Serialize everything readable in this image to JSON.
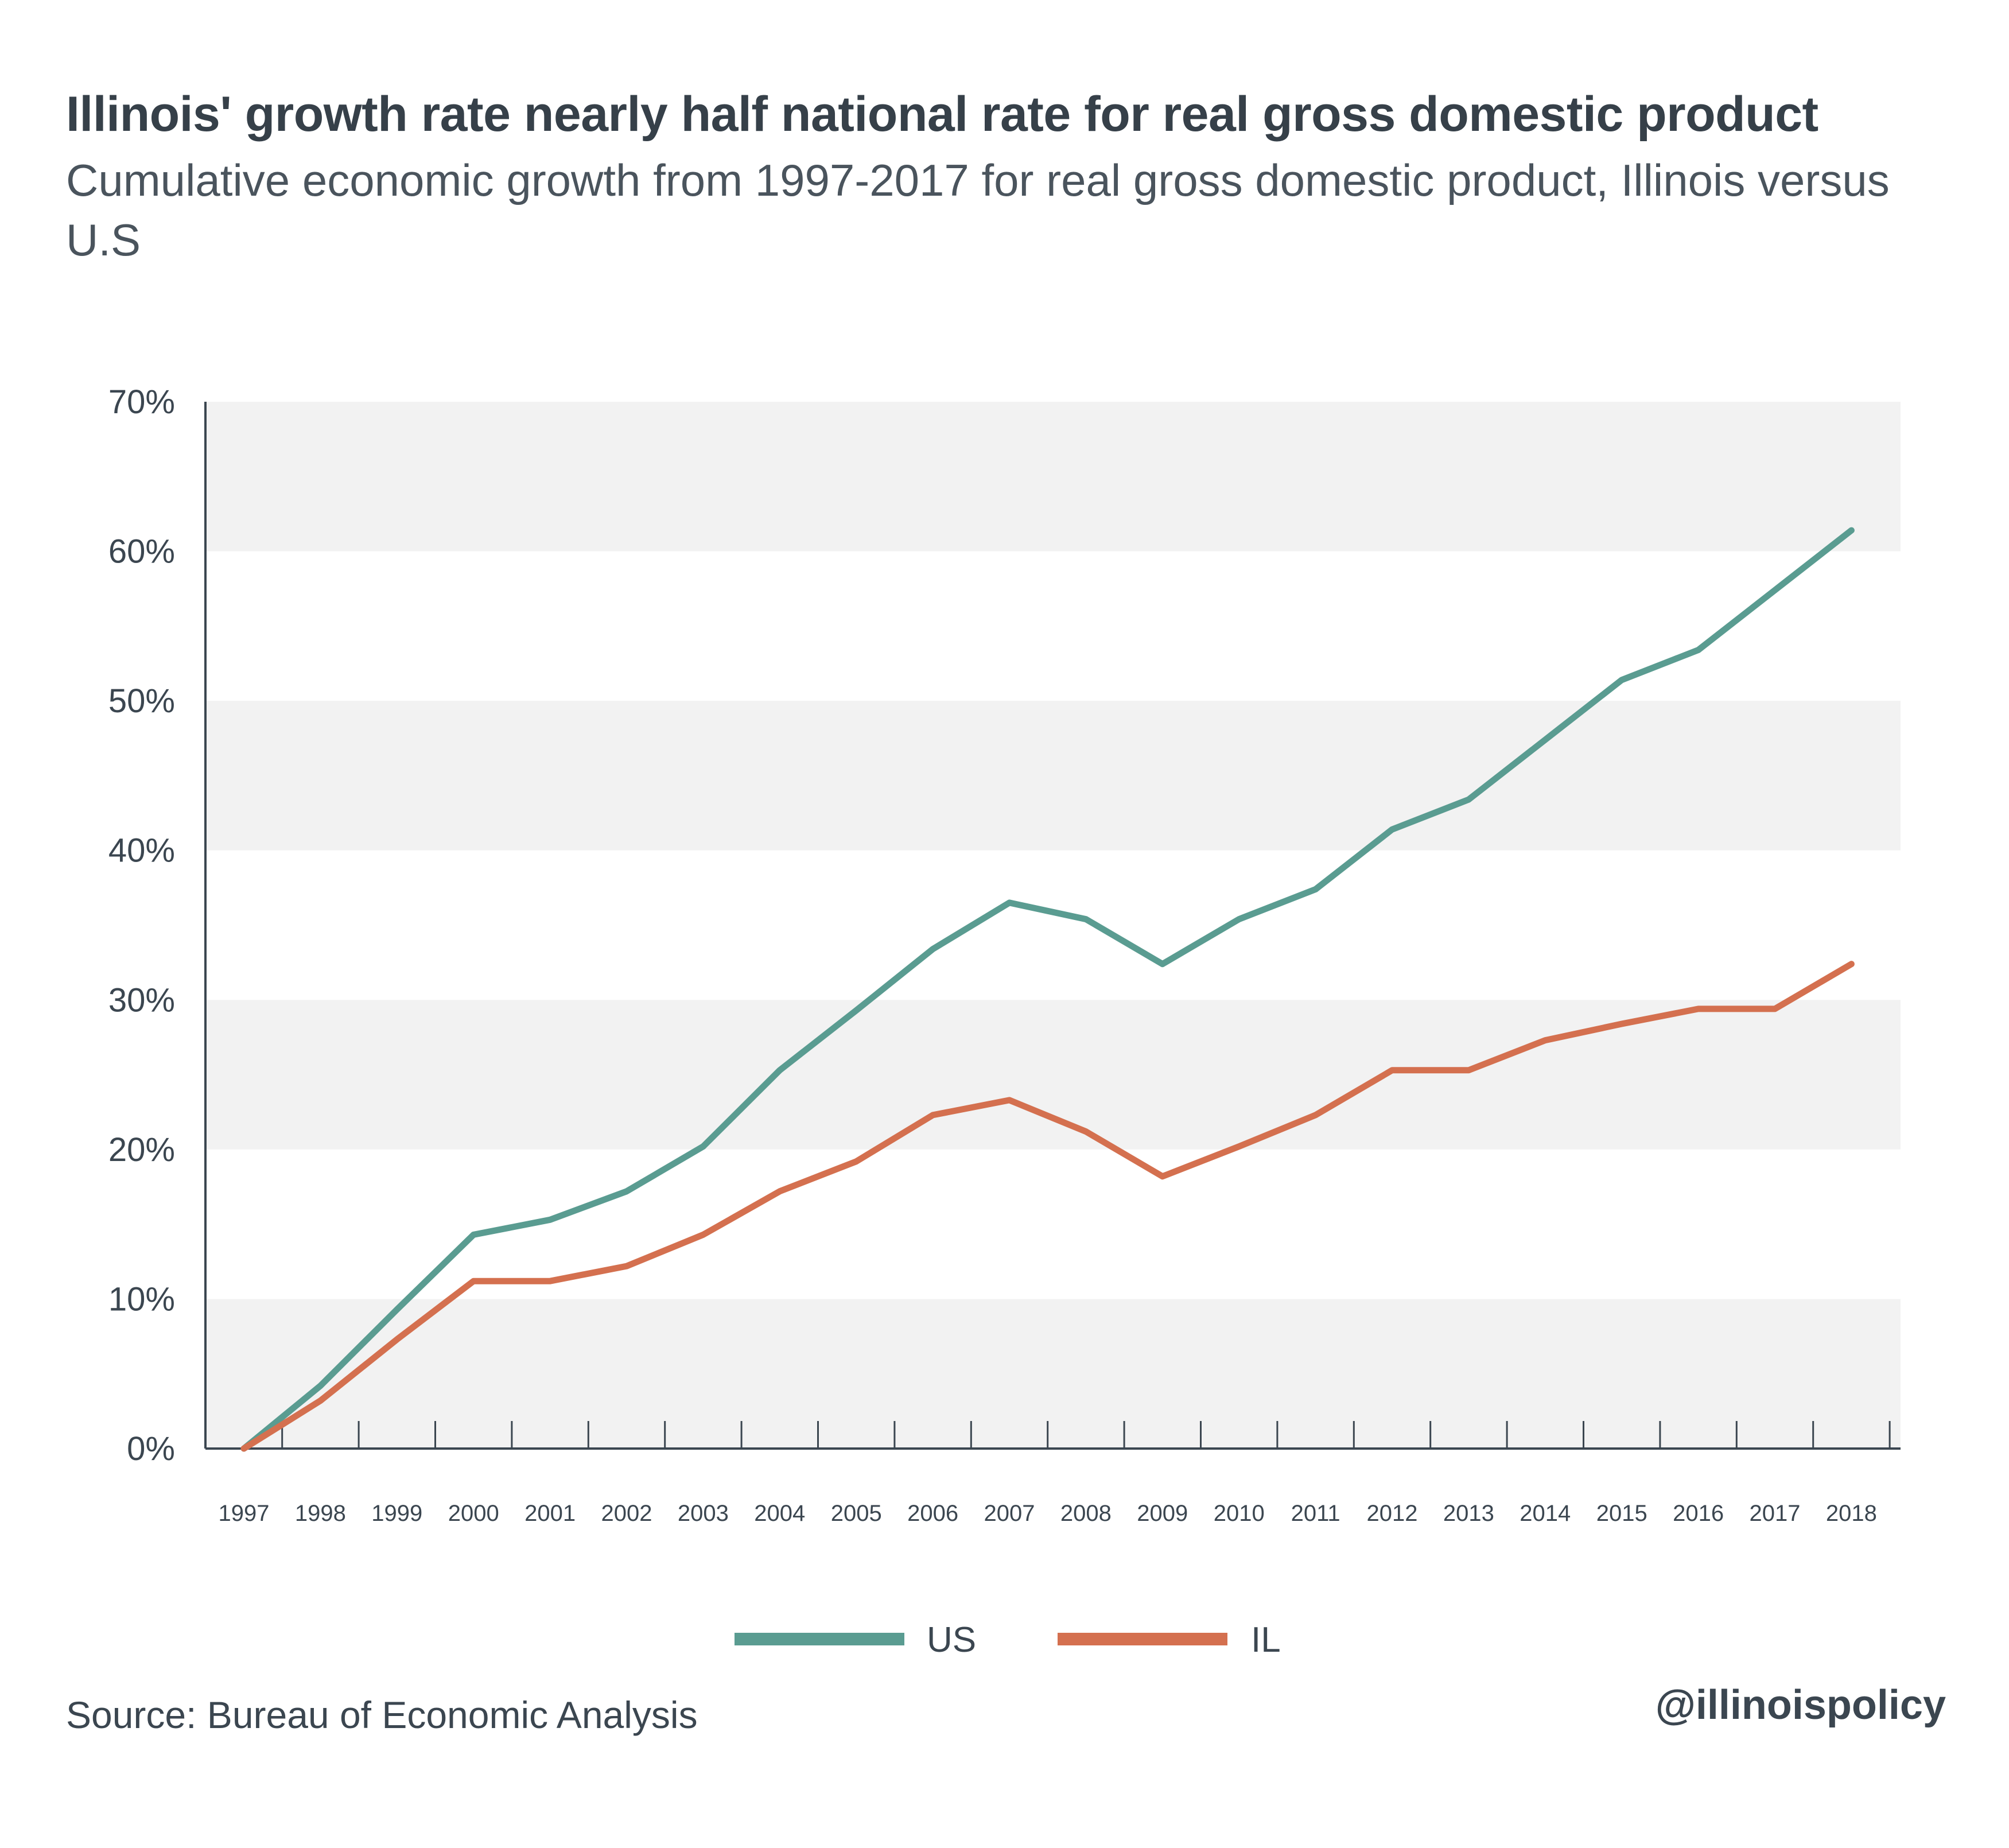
{
  "header": {
    "title": "Illinois' growth rate nearly half national rate for real gross domestic product",
    "subtitle": "Cumulative economic growth from 1997-2017 for real gross domestic product, Illinois versus U.S"
  },
  "footer": {
    "source": "Source:  Bureau of Economic Analysis",
    "handle": "@illinoispolicy"
  },
  "chart_data": {
    "type": "line",
    "title": "Illinois' growth rate nearly half national rate for real gross domestic product",
    "subtitle": "Cumulative economic growth from 1997-2017 for real gross domestic product, Illinois versus U.S",
    "x": [
      "1997",
      "1998",
      "1999",
      "2000",
      "2001",
      "2002",
      "2003",
      "2004",
      "2005",
      "2006",
      "2007",
      "2008",
      "2009",
      "2010",
      "2011",
      "2012",
      "2013",
      "2014",
      "2015",
      "2016",
      "2017",
      "2018"
    ],
    "ylim": [
      0,
      70
    ],
    "yticks": [
      0,
      10,
      20,
      30,
      40,
      50,
      60,
      70
    ],
    "ytick_labels": [
      "0%",
      "10%",
      "20%",
      "30%",
      "40%",
      "50%",
      "60%",
      "70%"
    ],
    "grid": "alternating horizontal bands",
    "legend_position": "bottom-center",
    "series": [
      {
        "name": "US",
        "color": "#5a9c91",
        "values": [
          0,
          4.2,
          9.3,
          14.3,
          15.3,
          17.2,
          20.2,
          25.3,
          29.3,
          33.4,
          36.5,
          35.4,
          32.4,
          35.4,
          37.4,
          41.4,
          43.4,
          47.4,
          51.4,
          53.4,
          57.4,
          61.4
        ]
      },
      {
        "name": "IL",
        "color": "#d4704f",
        "values": [
          0,
          3.2,
          7.3,
          11.2,
          11.2,
          12.2,
          14.3,
          17.2,
          19.2,
          22.3,
          23.3,
          21.2,
          18.2,
          20.2,
          22.3,
          25.3,
          25.3,
          27.3,
          28.4,
          29.4,
          29.4,
          32.4
        ]
      }
    ]
  }
}
